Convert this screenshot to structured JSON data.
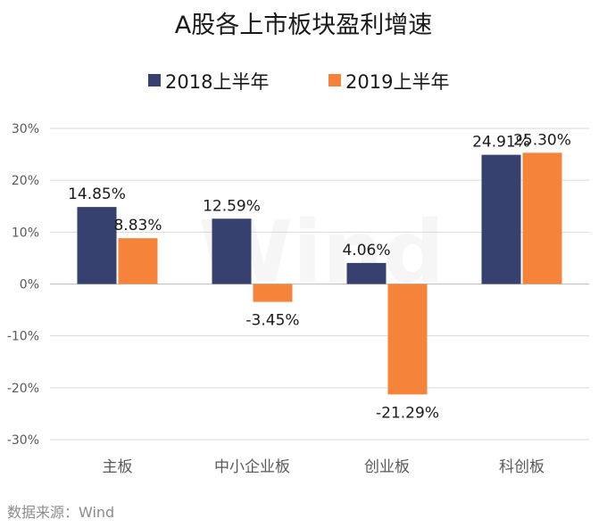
{
  "chart_data": {
    "type": "bar",
    "title": "A股各上市板块盈利增速",
    "categories": [
      "主板",
      "中小企业板",
      "创业板",
      "科创板"
    ],
    "series": [
      {
        "name": "2018上半年",
        "color": "#36416f",
        "values": [
          14.85,
          12.59,
          4.06,
          24.91
        ],
        "labels": [
          "14.85%",
          "12.59%",
          "4.06%",
          "24.91%"
        ]
      },
      {
        "name": "2019上半年",
        "color": "#f5843a",
        "values": [
          8.83,
          -3.45,
          -21.29,
          25.3
        ],
        "labels": [
          "8.83%",
          "-3.45%",
          "-21.29%",
          "25.30%"
        ]
      }
    ],
    "ylim": [
      -30,
      30
    ],
    "yticks": [
      30,
      20,
      10,
      0,
      -10,
      -20,
      -30
    ],
    "ytick_labels": [
      "30%",
      "20%",
      "10%",
      "0%",
      "-10%",
      "-20%",
      "-30%"
    ],
    "grid": true,
    "legend_position": "top"
  },
  "source": "数据来源：Wind",
  "watermark": "Wind"
}
